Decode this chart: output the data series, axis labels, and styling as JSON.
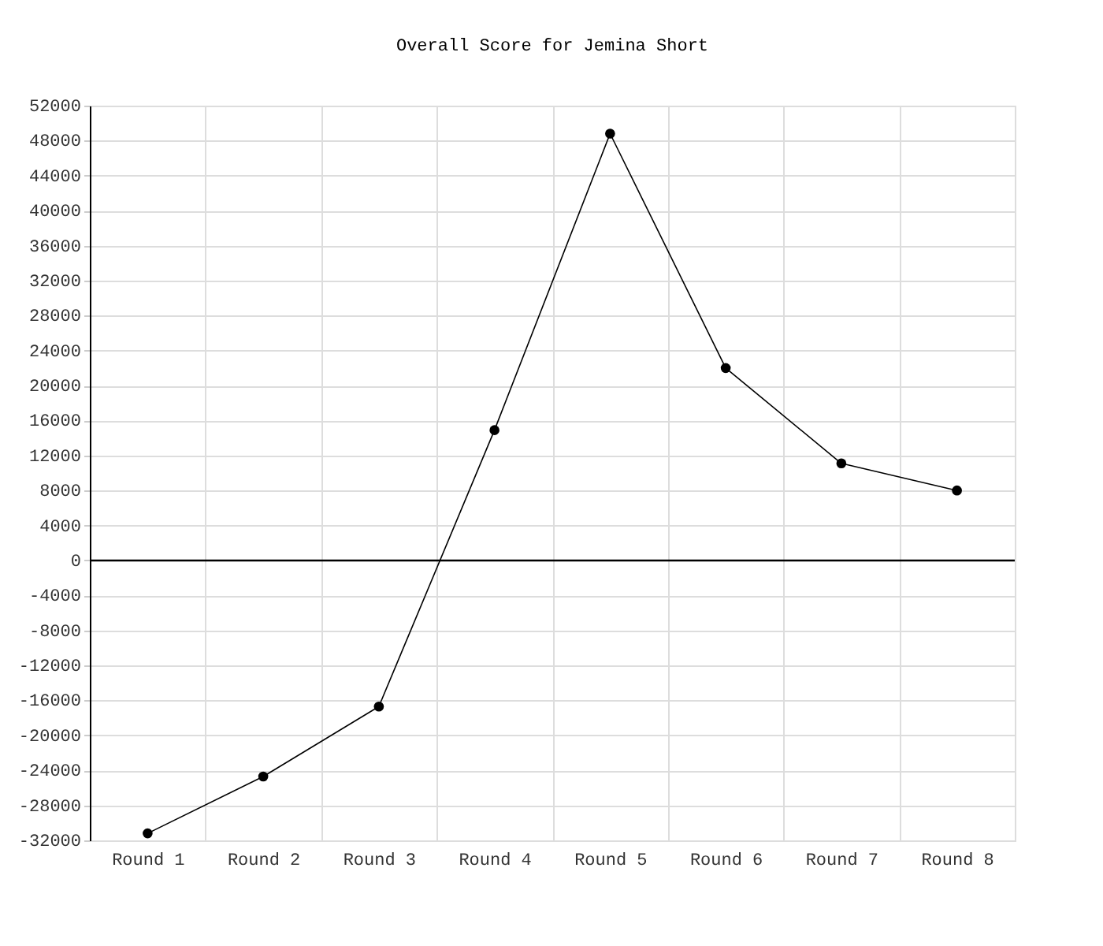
{
  "chart_data": {
    "type": "line",
    "title": "Overall Score for Jemina Short",
    "categories": [
      "Round 1",
      "Round 2",
      "Round 3",
      "Round 4",
      "Round 5",
      "Round 6",
      "Round 7",
      "Round 8"
    ],
    "series": [
      {
        "color": "#000000",
        "values": [
          -31200,
          -24700,
          -16700,
          14900,
          48800,
          22000,
          11100,
          8000
        ]
      }
    ],
    "ylim": [
      -32000,
      52000
    ],
    "yticks": [
      -32000,
      -28000,
      -24000,
      -20000,
      -16000,
      -12000,
      -8000,
      -4000,
      0,
      4000,
      8000,
      12000,
      16000,
      20000,
      24000,
      28000,
      32000,
      36000,
      40000,
      44000,
      48000,
      52000
    ],
    "grid": true,
    "marker": "circle",
    "line_style": "solid",
    "ref_lines": [
      {
        "axis": "y",
        "value": 0,
        "color": "#000000"
      }
    ]
  }
}
